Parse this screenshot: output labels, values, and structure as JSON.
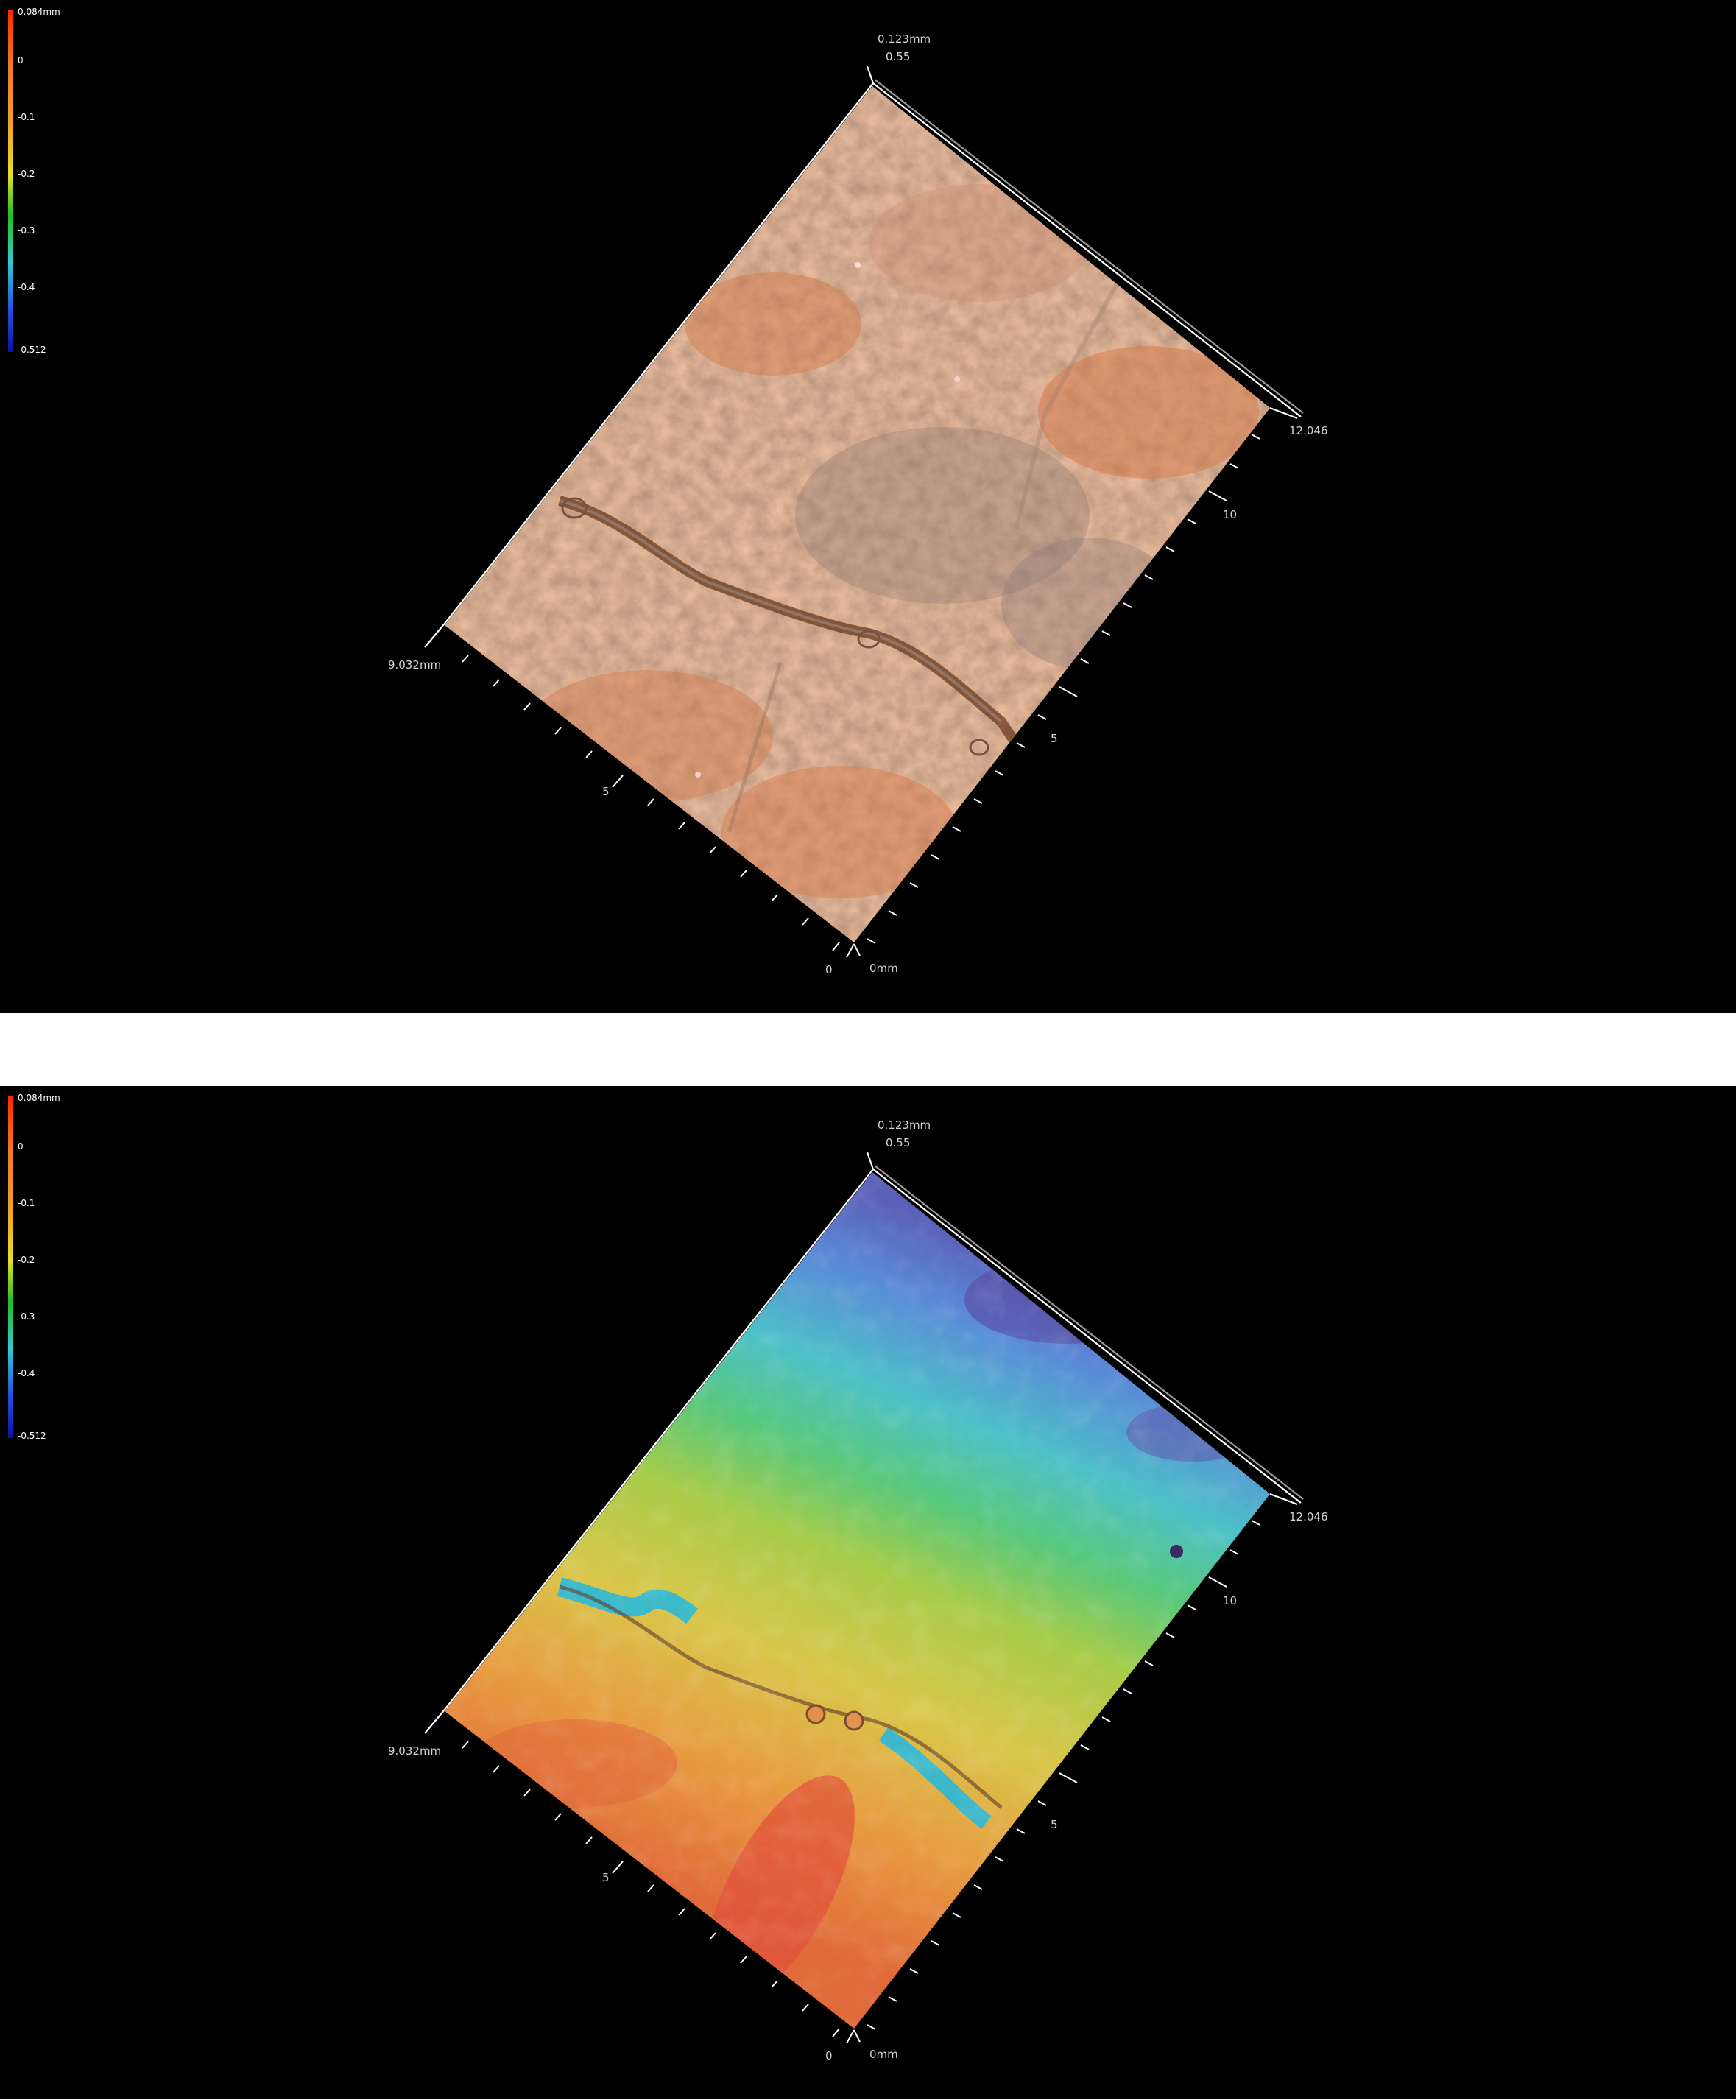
{
  "panels": [
    {
      "view": "texture",
      "legend": {
        "labels": [
          "0.084mm",
          "0",
          "-0.1",
          "-0.2",
          "-0.3",
          "-0.4",
          "-0.512"
        ],
        "colors": [
          "#ff2a00",
          "#f07a1e",
          "#f2a020",
          "#e8e020",
          "#20c020",
          "#30c8d8",
          "#2050e0",
          "#1010a0"
        ]
      },
      "axes": {
        "z_label": "0.123mm",
        "z_tick": "0.55",
        "x_end": "12.046",
        "x_ticks": [
          "10",
          "5"
        ],
        "y_end": "9.032mm",
        "y_tick": "5",
        "origin_a": "0",
        "origin_b": "0mm"
      }
    },
    {
      "view": "height-map",
      "legend": {
        "labels": [
          "0.084mm",
          "0",
          "-0.1",
          "-0.2",
          "-0.3",
          "-0.4",
          "-0.512"
        ],
        "colors": [
          "#ff2a00",
          "#f07a1e",
          "#f2a020",
          "#e8e020",
          "#20c020",
          "#30c8d8",
          "#2050e0",
          "#1010a0"
        ]
      },
      "axes": {
        "z_label": "0.123mm",
        "z_tick": "0.55",
        "x_end": "12.046",
        "x_ticks": [
          "10",
          "5"
        ],
        "y_end": "9.032mm",
        "y_tick": "5",
        "origin_a": "0",
        "origin_b": "0mm"
      }
    }
  ]
}
